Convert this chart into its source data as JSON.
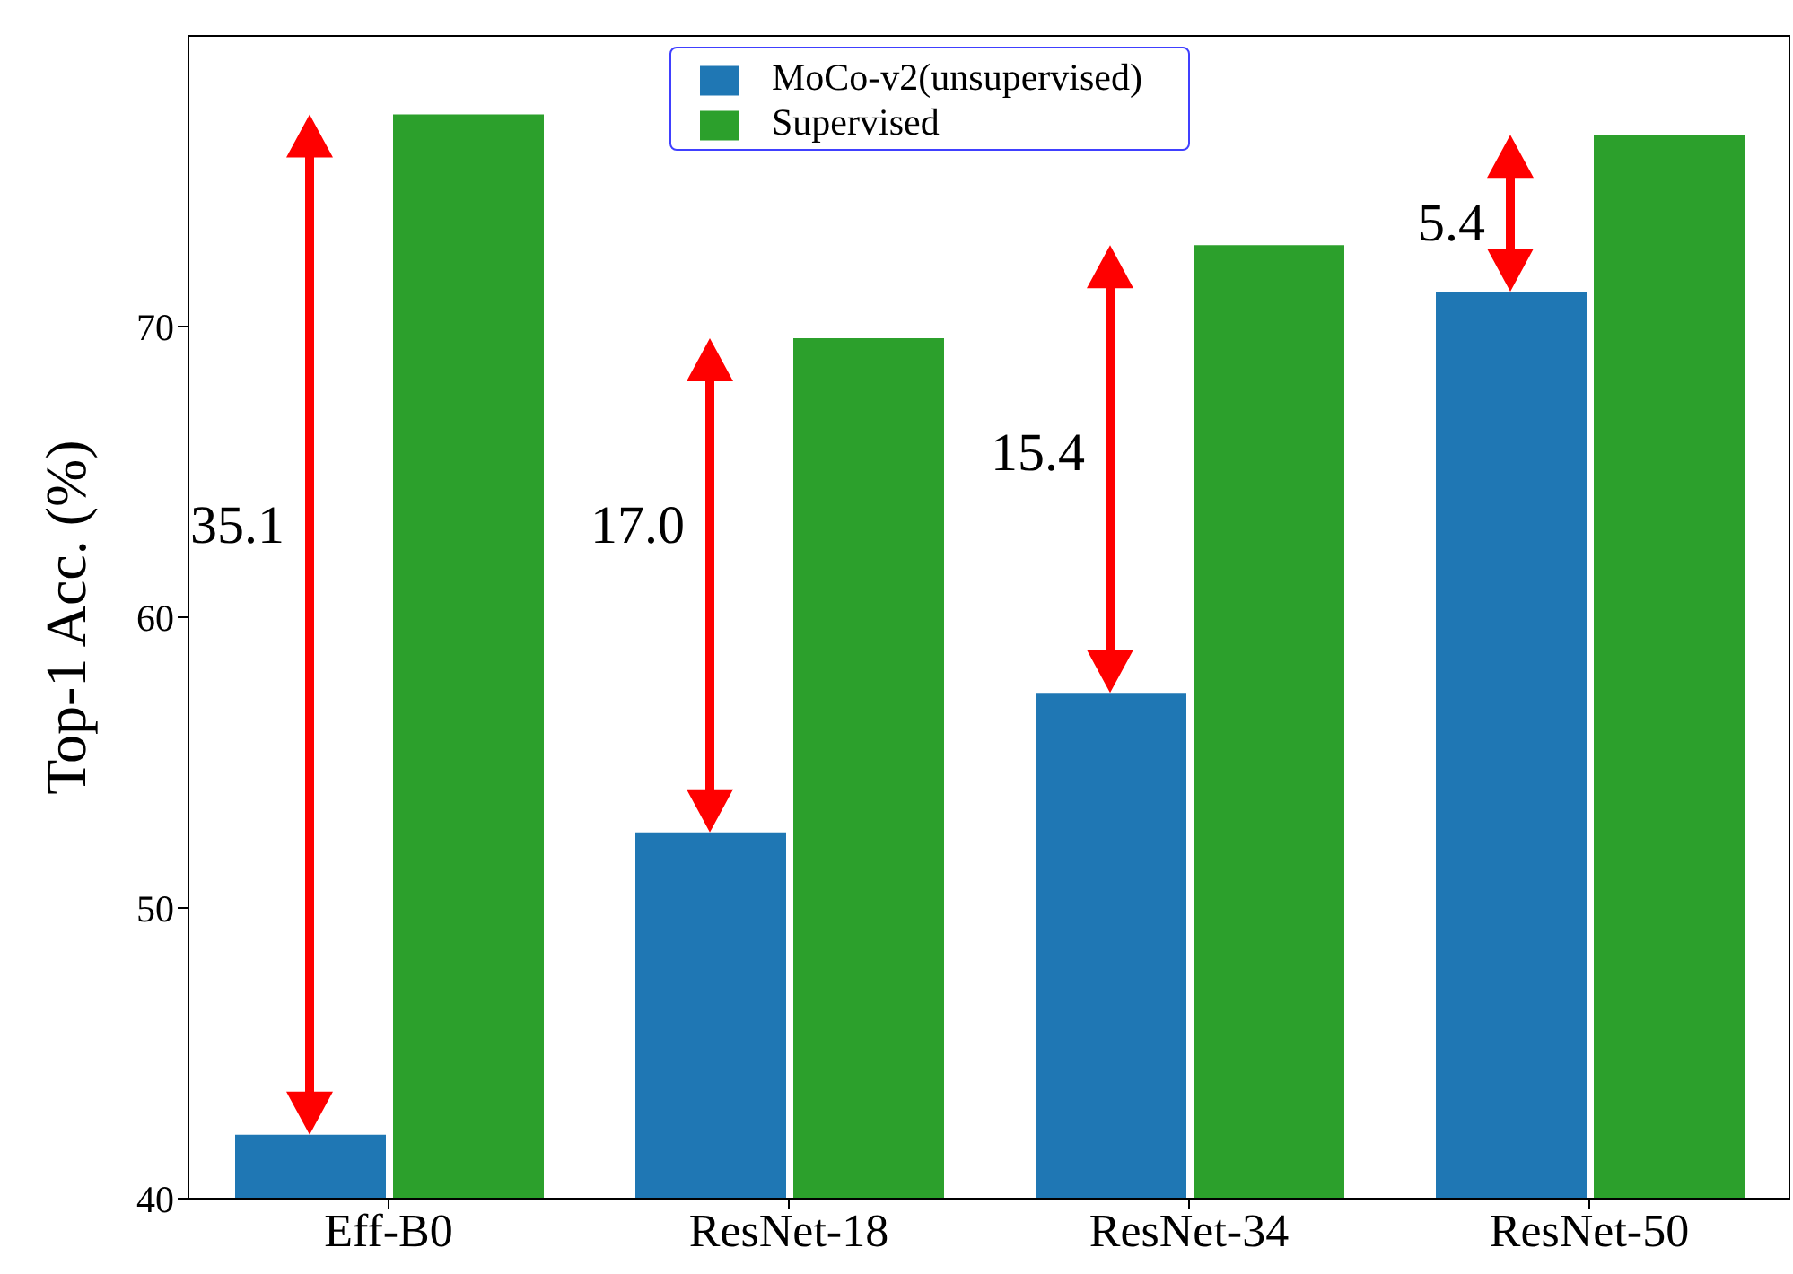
{
  "chart_data": {
    "type": "bar",
    "ylabel": "Top-1 Acc. (%)",
    "categories": [
      "Eff-B0",
      "ResNet-18",
      "ResNet-34",
      "ResNet-50"
    ],
    "series": [
      {
        "name": "MoCo-v2(unsupervised)",
        "color": "#1f77b4",
        "values": [
          42.2,
          52.6,
          57.4,
          71.2
        ]
      },
      {
        "name": "Supervised",
        "color": "#2ca02c",
        "values": [
          77.3,
          69.6,
          72.8,
          76.6
        ]
      }
    ],
    "ylim": [
      40,
      80
    ],
    "yticks": [
      40,
      50,
      60,
      70
    ],
    "legend": "top",
    "annotations": [
      {
        "text": "35.1",
        "x": "Eff-B0",
        "y": 63.0
      },
      {
        "text": "17.0",
        "x": "ResNet-18",
        "y": 63.0
      },
      {
        "text": "15.4",
        "x": "ResNet-34",
        "y": 65.5
      },
      {
        "text": "5.4",
        "x": "ResNet-50",
        "y": 73.4
      }
    ]
  }
}
